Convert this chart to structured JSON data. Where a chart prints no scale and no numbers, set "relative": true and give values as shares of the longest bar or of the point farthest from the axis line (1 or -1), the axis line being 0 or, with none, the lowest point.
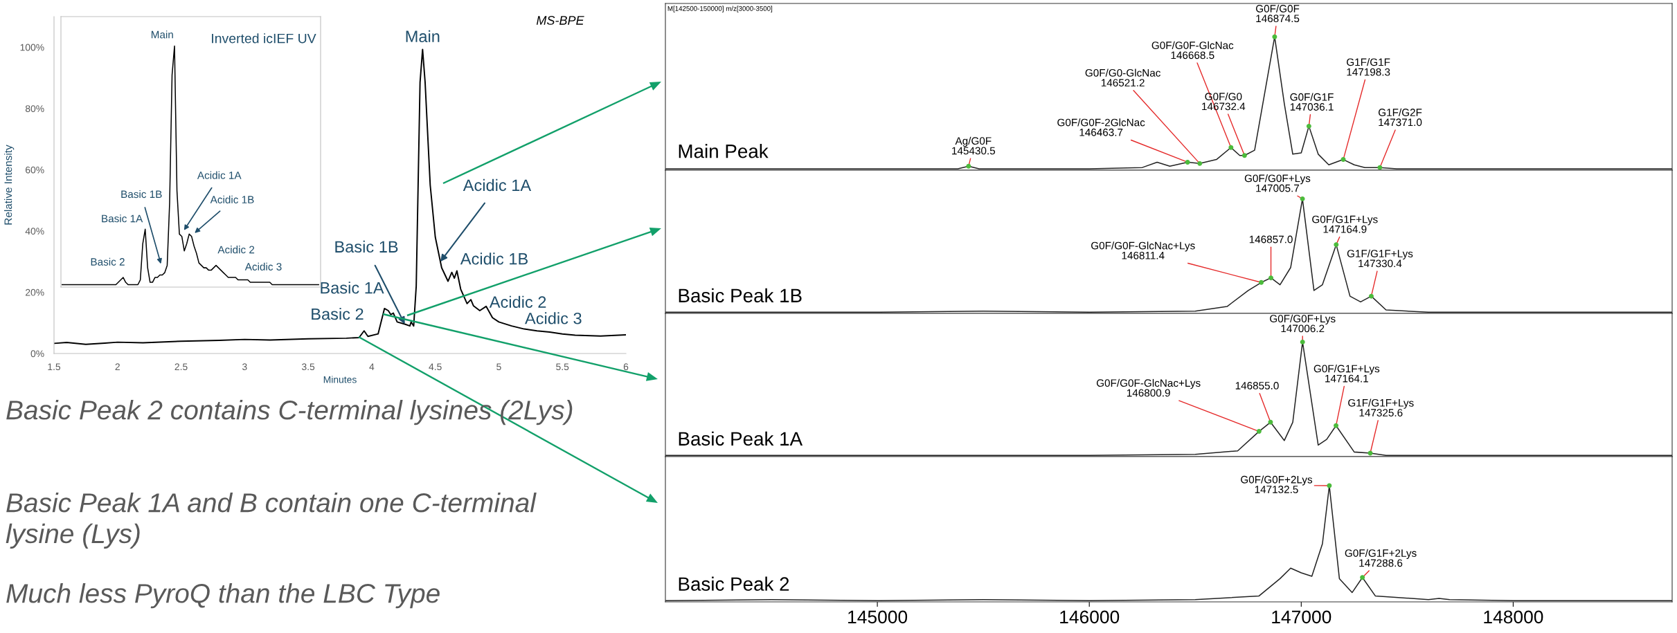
{
  "chart_data": [
    {
      "type": "line",
      "xlabel": "Minutes",
      "ylabel": "Relative Intensity",
      "x": [
        1.5,
        1.6,
        1.75,
        1.9,
        2.0,
        2.2,
        2.5,
        2.8,
        3.0,
        3.2,
        3.5,
        3.8,
        3.9,
        3.94,
        3.97,
        4.05,
        4.1,
        4.13,
        4.15,
        4.17,
        4.2,
        4.26,
        4.3,
        4.31,
        4.33,
        4.35,
        4.38,
        4.4,
        4.42,
        4.46,
        4.5,
        4.55,
        4.6,
        4.63,
        4.65,
        4.67,
        4.7,
        4.75,
        4.78,
        4.8,
        4.85,
        4.9,
        4.95,
        5.0,
        5.1,
        5.2,
        5.3,
        5.4,
        5.5,
        5.6,
        5.8,
        6.0
      ],
      "series": [
        {
          "color": "#000000",
          "values": [
            3.3,
            3.6,
            3.0,
            3.4,
            3.7,
            3.5,
            4.0,
            4.3,
            4.6,
            4.4,
            4.8,
            5.0,
            5.2,
            7.4,
            5.6,
            6.4,
            14.7,
            14.0,
            12.7,
            13.2,
            10.3,
            9.6,
            9.0,
            10.3,
            9.0,
            22,
            88.5,
            99.3,
            88.5,
            55,
            38,
            28,
            23.6,
            26.5,
            24.6,
            27,
            21,
            16.3,
            17.6,
            15.6,
            14.0,
            15.4,
            11.7,
            10.3,
            9.0,
            8.0,
            7.4,
            7.0,
            6.4,
            6.0,
            5.7,
            6.1
          ]
        }
      ],
      "xlim": [
        1.5,
        6
      ],
      "xticks": [
        1.5,
        2,
        2.5,
        3,
        3.5,
        4,
        4.5,
        5,
        5.5,
        6
      ],
      "ylim": [
        0,
        110
      ],
      "yticks": [
        {
          "value": 0,
          "label": "0%"
        },
        {
          "value": 20,
          "label": "20%"
        },
        {
          "value": 40,
          "label": "40%"
        },
        {
          "value": 60,
          "label": "60%"
        },
        {
          "value": 80,
          "label": "80%"
        },
        {
          "value": 100,
          "label": "100%"
        }
      ],
      "annotations": [
        {
          "text": "Main",
          "x": 4.4,
          "y": 99.3
        },
        {
          "text": "Acidic 1A",
          "x": 4.54,
          "y": 30
        },
        {
          "text": "Acidic 1B",
          "x": 4.67,
          "y": 27
        },
        {
          "text": "Acidic 2",
          "x": 4.78,
          "y": 17.6
        },
        {
          "text": "Acidic 3",
          "x": 4.9,
          "y": 15.4
        },
        {
          "text": "Basic 1B",
          "x": 4.26,
          "y": 9.6
        },
        {
          "text": "Basic 1A",
          "x": 4.1,
          "y": 14.7
        },
        {
          "text": "Basic 2",
          "x": 3.94,
          "y": 7.4
        },
        "MS-BPE",
        "Basic Peak 2 contains C-terminal lysines (2Lys)",
        "Basic Peak 1A and B contain one C-terminal lysine (Lys)",
        "Much less PyroQ than the LBC Type"
      ]
    },
    {
      "type": "line",
      "relative": true,
      "title": "Inverted icIEF UV",
      "categories": [
        null,
        null,
        null,
        null,
        null,
        null,
        null,
        null,
        null,
        null,
        null,
        null,
        null,
        null,
        null,
        null,
        null,
        null,
        null,
        null,
        null,
        null,
        null,
        null,
        null,
        null,
        null,
        null,
        null,
        null,
        null,
        null,
        null,
        null,
        null,
        null,
        null,
        null,
        null,
        null,
        null,
        null,
        null,
        null,
        null,
        null,
        null,
        null,
        null,
        null,
        null,
        null,
        null,
        null,
        null,
        null,
        null,
        null,
        null,
        null,
        null,
        null,
        null,
        null,
        null,
        null,
        null,
        null,
        null,
        null,
        null,
        null,
        null,
        null,
        null,
        null,
        null,
        null,
        null,
        null,
        null,
        null,
        null,
        null,
        null,
        null,
        null,
        null,
        null,
        null,
        null,
        null,
        null,
        null,
        null,
        null,
        null,
        null,
        null,
        null,
        null,
        null,
        null,
        null,
        null,
        null
      ],
      "series": [
        {
          "color": "#000000",
          "values": [
            0.01,
            0.01,
            0.01,
            0.01,
            0.01,
            0.01,
            0.01,
            0.01,
            0.01,
            0.01,
            0.01,
            0.01,
            0.01,
            0.01,
            0.01,
            0.01,
            0.01,
            0.01,
            0.01,
            0.01,
            0.01,
            0.01,
            0.01,
            0.02,
            0.03,
            0.04,
            0.02,
            0.01,
            0.01,
            0.01,
            0.01,
            0.01,
            0.03,
            0.18,
            0.24,
            0.08,
            0.02,
            0.02,
            0.04,
            0.04,
            0.05,
            0.05,
            0.06,
            0.09,
            0.35,
            0.88,
            1.0,
            0.4,
            0.22,
            0.21,
            0.15,
            0.18,
            0.22,
            0.21,
            0.17,
            0.14,
            0.1,
            0.09,
            0.08,
            0.08,
            0.07,
            0.07,
            0.08,
            0.09,
            0.08,
            0.07,
            0.06,
            0.05,
            0.04,
            0.04,
            0.04,
            0.04,
            0.03,
            0.03,
            0.03,
            0.03,
            0.03,
            0.02,
            0.02,
            0.02,
            0.02,
            0.02,
            0.02,
            0.02,
            0.02,
            0.02,
            0.01,
            0.01,
            0.01,
            0.01,
            0.01,
            0.01,
            0.01,
            0.01,
            0.01,
            0.01,
            0.01,
            0.01,
            0.01,
            0.01,
            0.01,
            0.01,
            0.01,
            0.01,
            0.01,
            0.01
          ]
        }
      ],
      "annotations": [
        "Main",
        "Basic 2",
        "Basic 1A",
        "Basic 1B",
        "Acidic 1A",
        "Acidic 1B",
        "Acidic 2",
        "Acidic 3"
      ]
    },
    {
      "type": "line",
      "relative": true,
      "title": "Main Peak",
      "tick_labels": false,
      "xlim": [
        144000,
        148750
      ],
      "x": [
        144000,
        144500,
        145000,
        145380,
        145430.5,
        145480,
        146000,
        146250,
        146320,
        146380,
        146463.7,
        146521.2,
        146600,
        146668.5,
        146710,
        146732.4,
        146780,
        146830,
        146874.5,
        146920,
        146960,
        147000,
        147036.1,
        147080,
        147130,
        147198.3,
        147250,
        147300,
        147371.0,
        147450,
        148000,
        148750
      ],
      "series": [
        {
          "color": "#222222",
          "values": [
            0.01,
            0.01,
            0.01,
            0.01,
            0.03,
            0.01,
            0.01,
            0.02,
            0.06,
            0.03,
            0.06,
            0.05,
            0.08,
            0.17,
            0.11,
            0.11,
            0.15,
            0.6,
            1,
            0.5,
            0.12,
            0.13,
            0.33,
            0.12,
            0.04,
            0.08,
            0.04,
            0.02,
            0.02,
            0.01,
            0.01,
            0.01
          ]
        }
      ],
      "annotations": [
        "M[142500-150000] m/z[3000-3500]",
        {
          "text": "Ag/G0F\n145430.5",
          "x": 145430.5,
          "y": 0.03
        },
        {
          "text": "G0F/G0F-2GlcNac\n146463.7",
          "x": 146463.7,
          "y": 0.06
        },
        {
          "text": "G0F/G0-GlcNac\n146521.2",
          "x": 146521.2,
          "y": 0.05
        },
        {
          "text": "G0F/G0F-GlcNac\n146668.5",
          "x": 146668.5,
          "y": 0.17
        },
        {
          "text": "G0F/G0\n146732.4",
          "x": 146732.4,
          "y": 0.11
        },
        {
          "text": "G0F/G0F\n146874.5",
          "x": 146874.5,
          "y": 1
        },
        {
          "text": "G0F/G1F\n147036.1",
          "x": 147036.1,
          "y": 0.33
        },
        {
          "text": "G1F/G1F\n147198.3",
          "x": 147198.3,
          "y": 0.08
        },
        {
          "text": "G1F/G2F\n147371.0",
          "x": 147371.0,
          "y": 0.02
        }
      ]
    },
    {
      "type": "line",
      "relative": true,
      "title": "Basic Peak 1B",
      "tick_labels": false,
      "xlim": [
        144000,
        148750
      ],
      "x": [
        144000,
        144500,
        145000,
        145500,
        146000,
        146500,
        146650,
        146750,
        146811.4,
        146857.0,
        146900,
        146950,
        147005.7,
        147060,
        147100,
        147164.9,
        147230,
        147280,
        147330.4,
        147400,
        147600,
        148000,
        148750
      ],
      "series": [
        {
          "color": "#222222",
          "values": [
            0.01,
            0.01,
            0.01,
            0.02,
            0.01,
            0.02,
            0.06,
            0.2,
            0.27,
            0.31,
            0.25,
            0.4,
            1,
            0.2,
            0.25,
            0.6,
            0.15,
            0.1,
            0.15,
            0.03,
            0.01,
            0.01,
            0.01
          ]
        }
      ],
      "annotations": [
        {
          "text": "G0F/G0F-GlcNac+Lys\n146811.4",
          "x": 146811.4,
          "y": 0.27
        },
        {
          "text": "146857.0",
          "x": 146857.0,
          "y": 0.31
        },
        {
          "text": "G0F/G0F+Lys\n147005.7",
          "x": 147005.7,
          "y": 1
        },
        {
          "text": "G0F/G1F+Lys\n147164.9",
          "x": 147164.9,
          "y": 0.6
        },
        {
          "text": "G1F/G1F+Lys\n147330.4",
          "x": 147330.4,
          "y": 0.15
        }
      ]
    },
    {
      "type": "line",
      "relative": true,
      "title": "Basic Peak 1A",
      "tick_labels": false,
      "xlim": [
        144000,
        148750
      ],
      "x": [
        144000,
        145000,
        146000,
        146500,
        146700,
        146800.9,
        146855.0,
        146920,
        146960,
        147006.2,
        147080,
        147120,
        147164.1,
        147250,
        147325.6,
        147400,
        148000,
        148750
      ],
      "series": [
        {
          "color": "#222222",
          "values": [
            0.01,
            0.01,
            0.01,
            0.02,
            0.05,
            0.22,
            0.3,
            0.14,
            0.3,
            1,
            0.1,
            0.15,
            0.27,
            0.04,
            0.03,
            0.01,
            0.01,
            0.01
          ]
        }
      ],
      "annotations": [
        {
          "text": "G0F/G0F-GlcNac+Lys\n146800.9",
          "x": 146800.9,
          "y": 0.22
        },
        {
          "text": "146855.0",
          "x": 146855.0,
          "y": 0.3
        },
        {
          "text": "G0F/G0F+Lys\n147006.2",
          "x": 147006.2,
          "y": 1
        },
        {
          "text": "G0F/G1F+Lys\n147164.1",
          "x": 147164.1,
          "y": 0.27
        },
        {
          "text": "G1F/G1F+Lys\n147325.6",
          "x": 147325.6,
          "y": 0.03
        }
      ]
    },
    {
      "type": "line",
      "relative": true,
      "title": "Basic Peak 2",
      "tick_labels": "x",
      "xlim": [
        144000,
        148750
      ],
      "xticks": [
        145000,
        146000,
        147000,
        148000
      ],
      "x": [
        144000,
        144500,
        145000,
        145500,
        146000,
        146500,
        146800,
        146900,
        146950,
        147000,
        147050,
        147100,
        147132.5,
        147180,
        147240,
        147288.6,
        147350,
        147600,
        147650,
        147700,
        148000,
        148750
      ],
      "series": [
        {
          "color": "#222222",
          "values": [
            0.01,
            0.02,
            0.01,
            0.02,
            0.01,
            0.02,
            0.05,
            0.2,
            0.29,
            0.25,
            0.22,
            0.5,
            1,
            0.2,
            0.08,
            0.21,
            0.05,
            0.02,
            0.03,
            0.02,
            0.01,
            0.01
          ]
        }
      ],
      "annotations": [
        {
          "text": "G0F/G0F+2Lys\n147132.5",
          "x": 147132.5,
          "y": 1
        },
        {
          "text": "G0F/G1F+2Lys\n147288.6",
          "x": 147288.6,
          "y": 0.21
        }
      ]
    }
  ]
}
